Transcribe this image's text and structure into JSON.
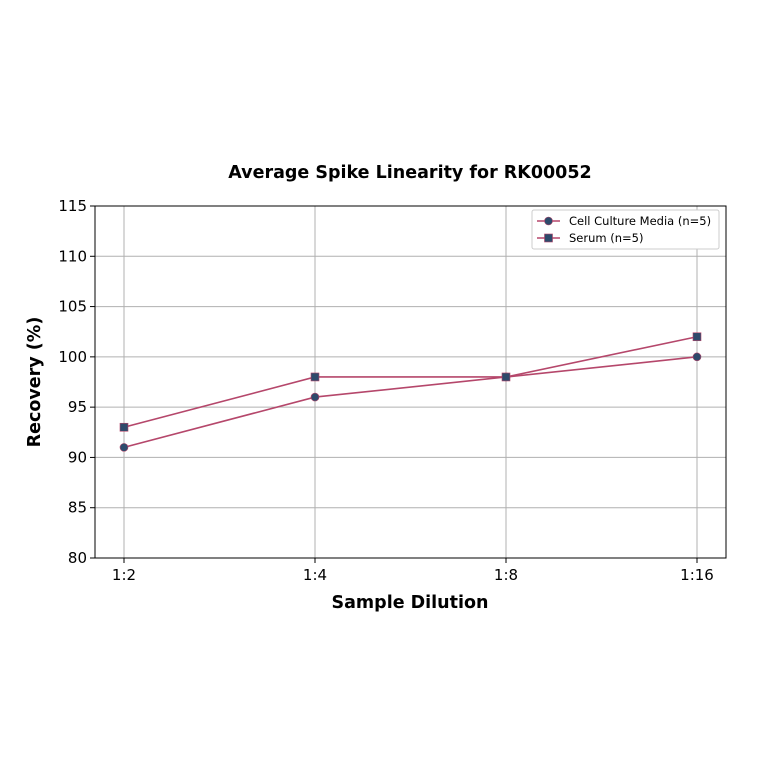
{
  "chart_data": {
    "type": "line",
    "title": "Average Spike Linearity for RK00052",
    "xlabel": "Sample Dilution",
    "ylabel": "Recovery (%)",
    "categories": [
      "1:2",
      "1:4",
      "1:8",
      "1:16"
    ],
    "ylim": [
      80,
      115
    ],
    "yticks": [
      80,
      85,
      90,
      95,
      100,
      105,
      110,
      115
    ],
    "grid": true,
    "legend_position": "upper right",
    "series": [
      {
        "name": "Cell Culture Media (n=5)",
        "marker": "circle",
        "values": [
          91,
          96,
          98,
          100
        ]
      },
      {
        "name": "Serum (n=5)",
        "marker": "square",
        "values": [
          93,
          98,
          98,
          102
        ]
      }
    ],
    "colors": {
      "line": "#b5476b",
      "marker": "#2e4a6b",
      "grid": "#b0b0b0"
    }
  }
}
